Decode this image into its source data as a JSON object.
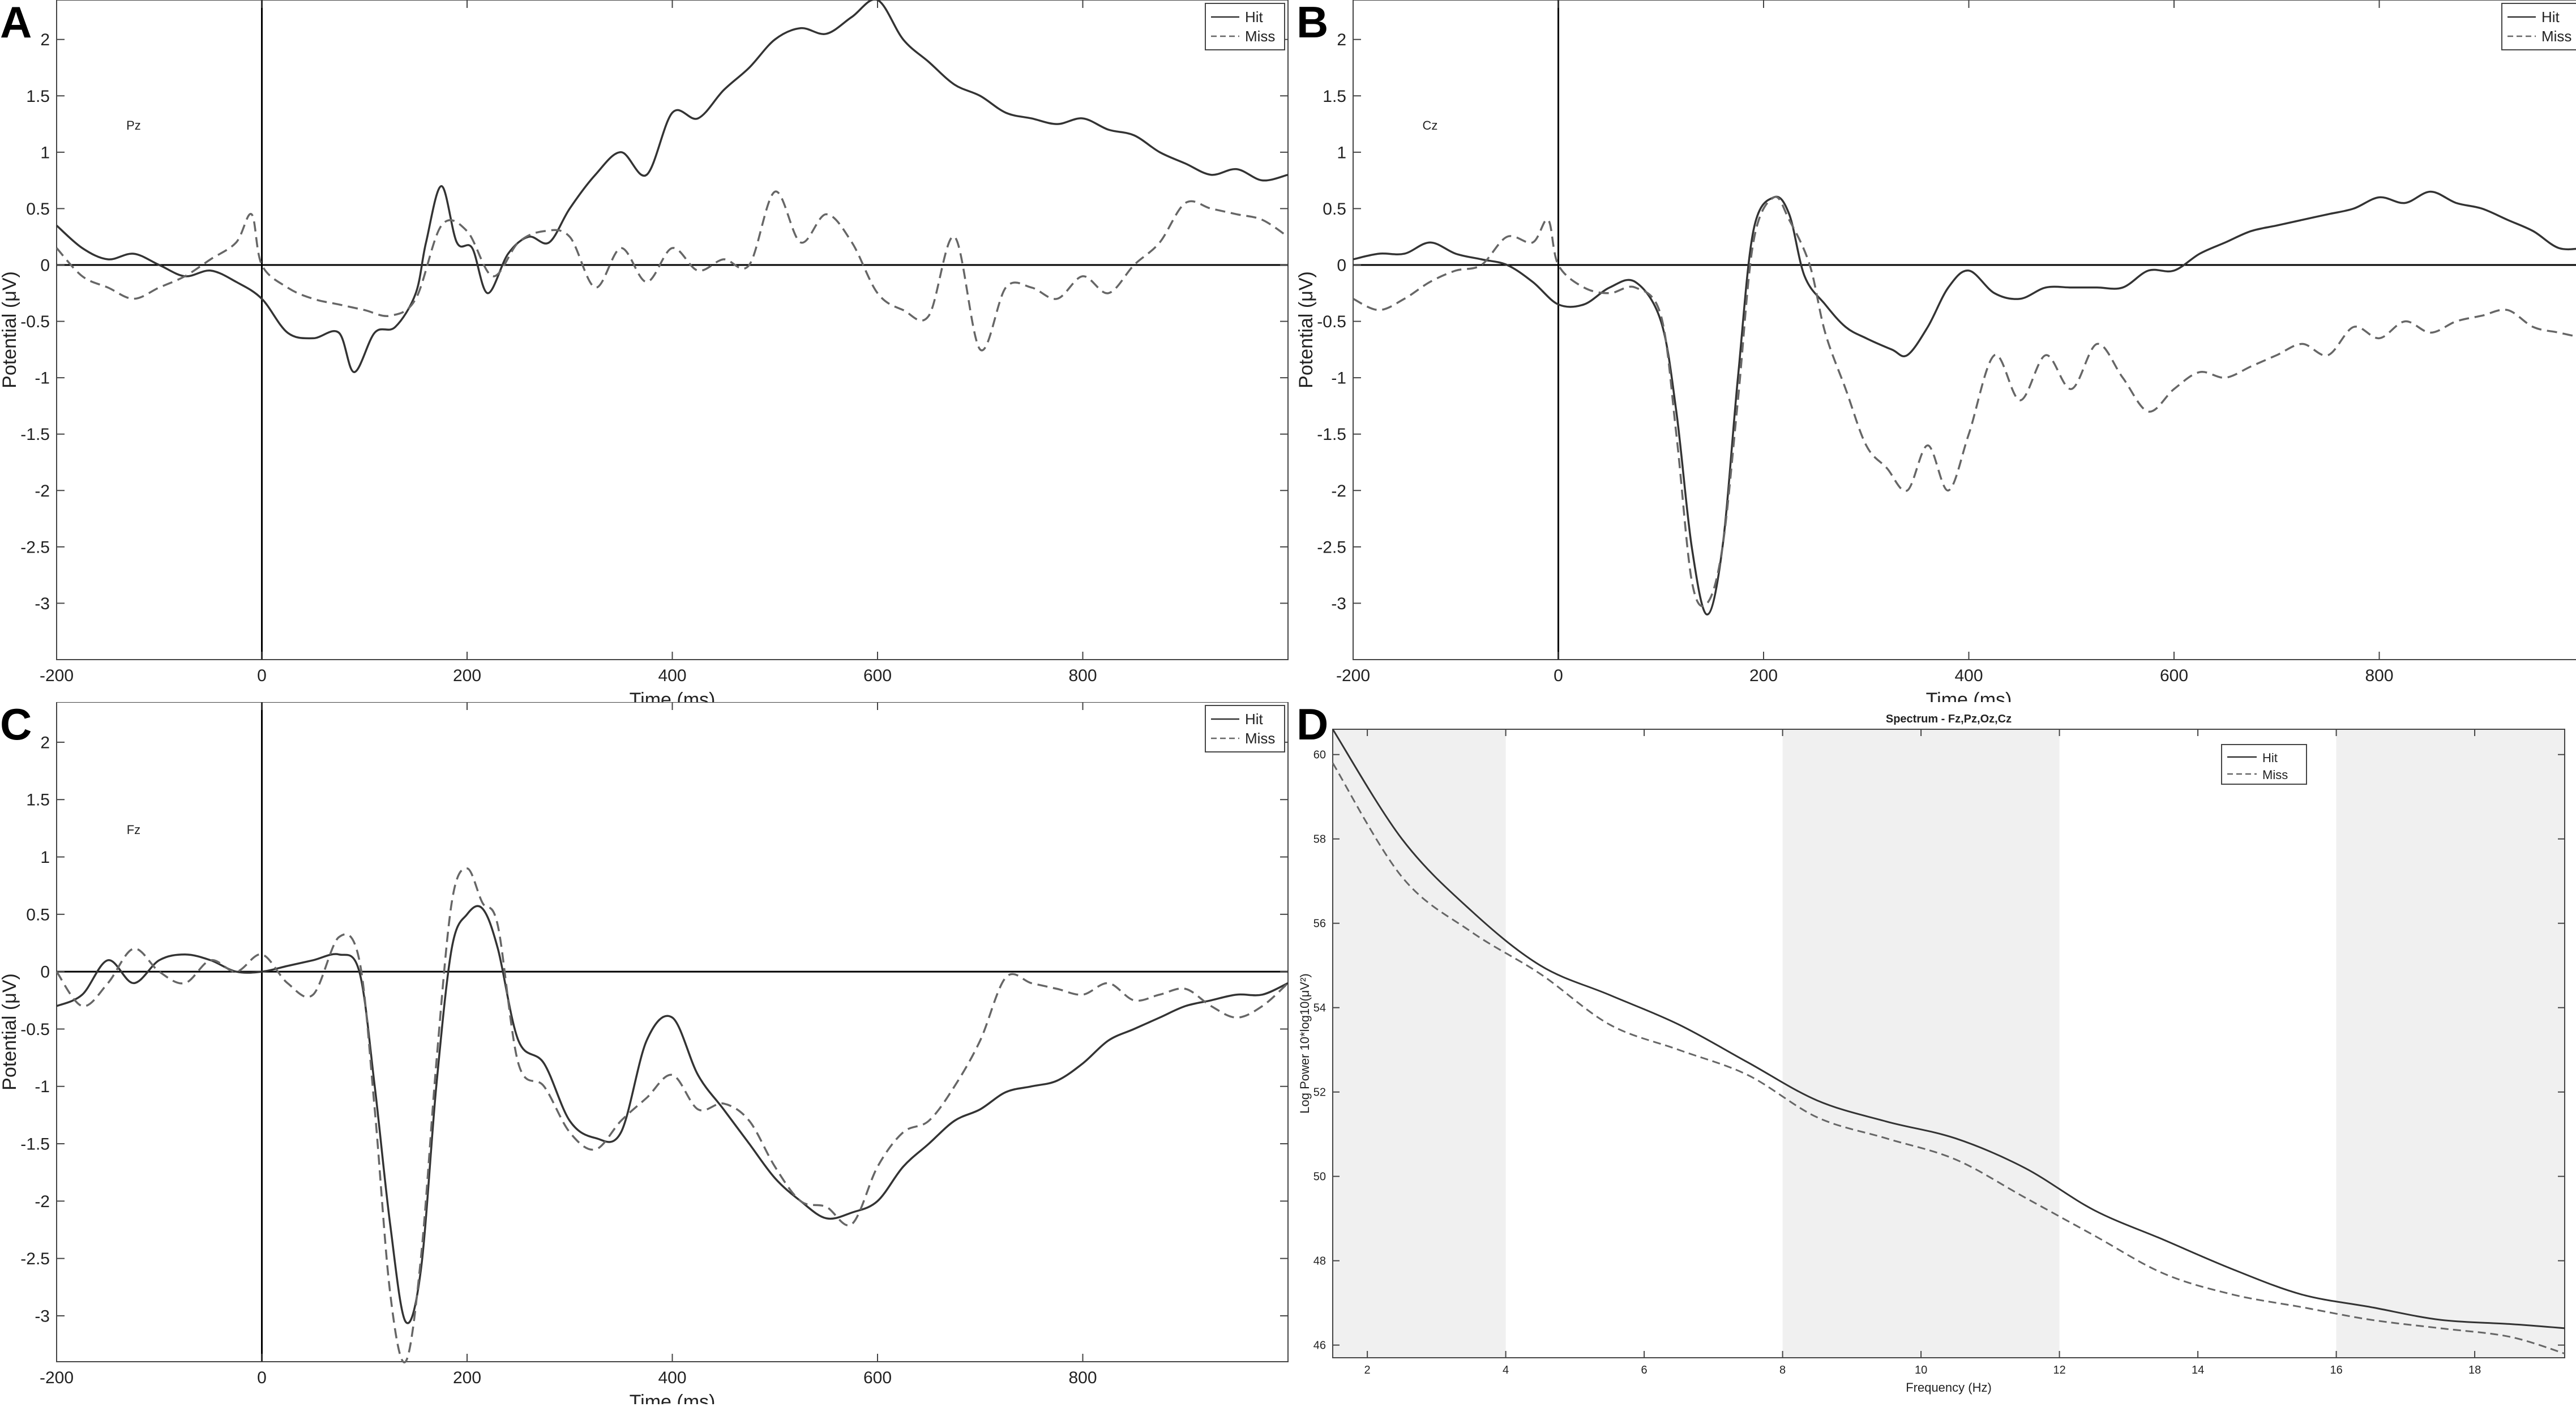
{
  "panels": [
    {
      "letter": "A",
      "chart_data": {
        "type": "line",
        "electrode": "Pz",
        "xlabel": "Time (ms)",
        "ylabel": "Potential (μV)",
        "xlim": [
          -200,
          1000
        ],
        "ylim": [
          -3.5,
          2.35
        ],
        "xticks": [
          -200,
          0,
          200,
          400,
          600,
          800
        ],
        "yticks": [
          -3,
          -2.5,
          -2,
          -1.5,
          -1,
          -0.5,
          0,
          0.5,
          1,
          1.5,
          2
        ],
        "legend_position": "top-right",
        "series": [
          {
            "name": "Hit",
            "style": "solid",
            "x": [
              -200,
              -175,
              -150,
              -125,
              -100,
              -75,
              -50,
              -25,
              0,
              25,
              50,
              75,
              90,
              110,
              130,
              150,
              160,
              175,
              190,
              205,
              220,
              240,
              260,
              280,
              300,
              325,
              350,
              375,
              400,
              425,
              450,
              475,
              500,
              525,
              550,
              575,
              600,
              625,
              650,
              675,
              700,
              725,
              750,
              775,
              800,
              825,
              850,
              875,
              900,
              925,
              950,
              975,
              1000
            ],
            "y": [
              0.35,
              0.15,
              0.05,
              0.1,
              0.0,
              -0.1,
              -0.05,
              -0.15,
              -0.3,
              -0.6,
              -0.65,
              -0.6,
              -0.95,
              -0.6,
              -0.55,
              -0.25,
              0.2,
              0.7,
              0.2,
              0.15,
              -0.25,
              0.1,
              0.25,
              0.2,
              0.5,
              0.8,
              1.0,
              0.8,
              1.35,
              1.3,
              1.55,
              1.75,
              2.0,
              2.1,
              2.05,
              2.2,
              2.35,
              2.0,
              1.8,
              1.6,
              1.5,
              1.35,
              1.3,
              1.25,
              1.3,
              1.2,
              1.15,
              1.0,
              0.9,
              0.8,
              0.85,
              0.75,
              0.8
            ]
          },
          {
            "name": "Miss",
            "style": "dashed",
            "x": [
              -200,
              -175,
              -150,
              -125,
              -100,
              -75,
              -50,
              -25,
              -10,
              0,
              25,
              50,
              75,
              100,
              125,
              150,
              175,
              200,
              225,
              250,
              275,
              300,
              325,
              350,
              375,
              400,
              425,
              450,
              475,
              500,
              525,
              550,
              575,
              600,
              625,
              650,
              675,
              700,
              725,
              750,
              775,
              800,
              825,
              850,
              875,
              900,
              925,
              950,
              975,
              1000
            ],
            "y": [
              0.15,
              -0.1,
              -0.2,
              -0.3,
              -0.2,
              -0.1,
              0.05,
              0.2,
              0.45,
              0.0,
              -0.2,
              -0.3,
              -0.35,
              -0.4,
              -0.45,
              -0.3,
              0.35,
              0.3,
              -0.1,
              0.2,
              0.3,
              0.25,
              -0.2,
              0.15,
              -0.15,
              0.15,
              -0.05,
              0.05,
              0.0,
              0.65,
              0.2,
              0.45,
              0.2,
              -0.25,
              -0.4,
              -0.45,
              0.25,
              -0.75,
              -0.2,
              -0.2,
              -0.3,
              -0.1,
              -0.25,
              0.0,
              0.2,
              0.55,
              0.5,
              0.45,
              0.4,
              0.25
            ]
          }
        ]
      }
    },
    {
      "letter": "B",
      "chart_data": {
        "type": "line",
        "electrode": "Cz",
        "xlabel": "Time (ms)",
        "ylabel": "Potential (μV)",
        "xlim": [
          -200,
          1000
        ],
        "ylim": [
          -3.5,
          2.35
        ],
        "xticks": [
          -200,
          0,
          200,
          400,
          600,
          800
        ],
        "yticks": [
          -3,
          -2.5,
          -2,
          -1.5,
          -1,
          -0.5,
          0,
          0.5,
          1,
          1.5,
          2
        ],
        "legend_position": "top-right",
        "series": [
          {
            "name": "Hit",
            "style": "solid",
            "x": [
              -200,
              -175,
              -150,
              -125,
              -100,
              -75,
              -50,
              -25,
              0,
              25,
              50,
              75,
              100,
              115,
              130,
              145,
              160,
              175,
              190,
              210,
              225,
              240,
              260,
              280,
              300,
              325,
              340,
              360,
              380,
              400,
              425,
              450,
              475,
              500,
              525,
              550,
              575,
              600,
              625,
              650,
              675,
              700,
              725,
              750,
              775,
              800,
              825,
              850,
              875,
              900,
              925,
              950,
              975,
              1000
            ],
            "y": [
              0.05,
              0.1,
              0.1,
              0.2,
              0.1,
              0.05,
              0.0,
              -0.15,
              -0.35,
              -0.35,
              -0.2,
              -0.15,
              -0.5,
              -1.3,
              -2.5,
              -3.1,
              -2.5,
              -1.0,
              0.3,
              0.6,
              0.45,
              -0.1,
              -0.35,
              -0.55,
              -0.65,
              -0.75,
              -0.8,
              -0.55,
              -0.2,
              -0.05,
              -0.25,
              -0.3,
              -0.2,
              -0.2,
              -0.2,
              -0.2,
              -0.05,
              -0.05,
              0.1,
              0.2,
              0.3,
              0.35,
              0.4,
              0.45,
              0.5,
              0.6,
              0.55,
              0.65,
              0.55,
              0.5,
              0.4,
              0.3,
              0.15,
              0.15
            ]
          },
          {
            "name": "Miss",
            "style": "dashed",
            "x": [
              -200,
              -175,
              -150,
              -125,
              -100,
              -75,
              -50,
              -25,
              -10,
              0,
              25,
              50,
              75,
              100,
              115,
              130,
              145,
              160,
              175,
              190,
              210,
              225,
              245,
              260,
              280,
              300,
              320,
              340,
              360,
              380,
              400,
              425,
              450,
              475,
              500,
              525,
              550,
              575,
              600,
              625,
              650,
              675,
              700,
              725,
              750,
              775,
              800,
              825,
              850,
              875,
              900,
              925,
              950,
              975,
              1000
            ],
            "y": [
              -0.3,
              -0.4,
              -0.3,
              -0.15,
              -0.05,
              0.0,
              0.25,
              0.2,
              0.4,
              0.0,
              -0.2,
              -0.25,
              -0.2,
              -0.45,
              -1.5,
              -2.8,
              -3.0,
              -2.5,
              -1.2,
              0.2,
              0.6,
              0.4,
              0.0,
              -0.6,
              -1.1,
              -1.6,
              -1.8,
              -2.0,
              -1.6,
              -2.0,
              -1.5,
              -0.8,
              -1.2,
              -0.8,
              -1.1,
              -0.7,
              -1.0,
              -1.3,
              -1.1,
              -0.95,
              -1.0,
              -0.9,
              -0.8,
              -0.7,
              -0.8,
              -0.55,
              -0.65,
              -0.5,
              -0.6,
              -0.5,
              -0.45,
              -0.4,
              -0.55,
              -0.6,
              -0.65
            ]
          }
        ]
      }
    },
    {
      "letter": "C",
      "chart_data": {
        "type": "line",
        "electrode": "Fz",
        "xlabel": "Time (ms)",
        "ylabel": "Potential (μV)",
        "xlim": [
          -200,
          1000
        ],
        "ylim": [
          -3.4,
          2.35
        ],
        "xticks": [
          -200,
          0,
          200,
          400,
          600,
          800
        ],
        "yticks": [
          -3,
          -2.5,
          -2,
          -1.5,
          -1,
          -0.5,
          0,
          0.5,
          1,
          1.5,
          2
        ],
        "legend_position": "top-right",
        "series": [
          {
            "name": "Hit",
            "style": "solid",
            "x": [
              -200,
              -175,
              -150,
              -125,
              -100,
              -75,
              -50,
              -25,
              0,
              25,
              50,
              75,
              95,
              110,
              125,
              140,
              155,
              170,
              185,
              200,
              215,
              230,
              250,
              275,
              300,
              325,
              350,
              375,
              400,
              425,
              450,
              475,
              500,
              525,
              550,
              575,
              600,
              625,
              650,
              675,
              700,
              725,
              750,
              775,
              800,
              825,
              850,
              875,
              900,
              925,
              950,
              975,
              1000
            ],
            "y": [
              -0.3,
              -0.2,
              0.1,
              -0.1,
              0.1,
              0.15,
              0.1,
              0.0,
              0.0,
              0.05,
              0.1,
              0.15,
              0.0,
              -1.0,
              -2.2,
              -3.05,
              -2.6,
              -1.0,
              0.2,
              0.5,
              0.55,
              0.2,
              -0.6,
              -0.8,
              -1.3,
              -1.45,
              -1.4,
              -0.6,
              -0.4,
              -0.9,
              -1.2,
              -1.5,
              -1.8,
              -2.0,
              -2.15,
              -2.1,
              -2.0,
              -1.7,
              -1.5,
              -1.3,
              -1.2,
              -1.05,
              -1.0,
              -0.95,
              -0.8,
              -0.6,
              -0.5,
              -0.4,
              -0.3,
              -0.25,
              -0.2,
              -0.2,
              -0.1
            ]
          },
          {
            "name": "Miss",
            "style": "dashed",
            "x": [
              -200,
              -175,
              -150,
              -125,
              -100,
              -75,
              -50,
              -25,
              0,
              25,
              50,
              75,
              95,
              110,
              125,
              140,
              155,
              170,
              185,
              200,
              215,
              230,
              250,
              275,
              300,
              325,
              350,
              375,
              400,
              425,
              450,
              475,
              500,
              525,
              550,
              575,
              600,
              625,
              650,
              675,
              700,
              725,
              750,
              775,
              800,
              825,
              850,
              875,
              900,
              925,
              950,
              975,
              1000
            ],
            "y": [
              0.0,
              -0.3,
              -0.1,
              0.2,
              0.0,
              -0.1,
              0.1,
              0.0,
              0.15,
              -0.1,
              -0.2,
              0.3,
              0.1,
              -1.2,
              -2.8,
              -3.4,
              -2.5,
              -0.8,
              0.6,
              0.9,
              0.6,
              0.4,
              -0.8,
              -1.0,
              -1.4,
              -1.55,
              -1.3,
              -1.1,
              -0.9,
              -1.2,
              -1.15,
              -1.3,
              -1.7,
              -2.0,
              -2.05,
              -2.2,
              -1.7,
              -1.4,
              -1.3,
              -1.0,
              -0.6,
              -0.05,
              -0.1,
              -0.15,
              -0.2,
              -0.1,
              -0.25,
              -0.2,
              -0.15,
              -0.3,
              -0.4,
              -0.3,
              -0.1
            ]
          }
        ]
      }
    },
    {
      "letter": "D",
      "chart_data": {
        "type": "line",
        "title": "Spectrum - Fz,Pz,Oz,Cz",
        "xlabel": "Frequency (Hz)",
        "ylabel": "Log Power 10*log10(μV²)",
        "xlim": [
          1.5,
          19.3
        ],
        "ylim": [
          45.7,
          60.6
        ],
        "xticks": [
          2,
          4,
          6,
          8,
          10,
          12,
          14,
          16,
          18
        ],
        "yticks": [
          46,
          48,
          50,
          52,
          54,
          56,
          58,
          60
        ],
        "shaded_bands": [
          [
            1.5,
            4
          ],
          [
            8,
            12
          ],
          [
            16,
            19.3
          ]
        ],
        "legend_position": "top-right",
        "series": [
          {
            "name": "Hit",
            "style": "solid",
            "x": [
              1.5,
              2.5,
              3.5,
              4.5,
              5.5,
              6.5,
              7.5,
              8.5,
              9.5,
              10.5,
              11.5,
              12.5,
              13.5,
              14.5,
              15.5,
              16.5,
              17.5,
              18.5,
              19.3
            ],
            "y": [
              60.6,
              58.0,
              56.3,
              55.0,
              54.3,
              53.6,
              52.7,
              51.8,
              51.3,
              50.9,
              50.2,
              49.2,
              48.5,
              47.8,
              47.2,
              46.9,
              46.6,
              46.5,
              46.4
            ]
          },
          {
            "name": "Miss",
            "style": "dashed",
            "x": [
              1.5,
              2.5,
              3.5,
              4.5,
              5.5,
              6.5,
              7.5,
              8.5,
              9.5,
              10.5,
              11.5,
              12.5,
              13.5,
              14.5,
              15.5,
              16.5,
              17.5,
              18.5,
              19.3
            ],
            "y": [
              59.8,
              57.1,
              55.8,
              54.8,
              53.6,
              53.0,
              52.4,
              51.4,
              50.9,
              50.4,
              49.5,
              48.6,
              47.7,
              47.2,
              46.9,
              46.6,
              46.4,
              46.2,
              45.8
            ]
          }
        ]
      }
    }
  ]
}
